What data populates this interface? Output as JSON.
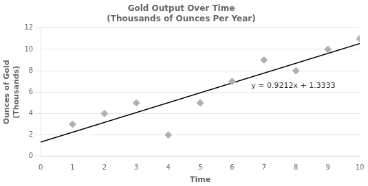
{
  "chart_data": {
    "type": "scatter",
    "title": "Gold Output Over Time\n(Thousands of Ounces Per Year)",
    "xlabel": "Time",
    "ylabel": "Ounces of Gold\n(Thousands)",
    "series": [
      {
        "type": "scatter",
        "x": [
          1,
          2,
          3,
          4,
          5,
          6,
          7,
          8,
          9,
          10
        ],
        "values": [
          3,
          4,
          5,
          2,
          5,
          7,
          9,
          8,
          10,
          11
        ],
        "color": "#b0b0b0",
        "marker": "diamond"
      },
      {
        "type": "line",
        "x": [
          0,
          10
        ],
        "values": [
          1.3333,
          10.5453
        ],
        "color": "#000000",
        "line_style": "solid"
      }
    ],
    "annotations": [
      {
        "text": "y = 0.9212x + 1.3333",
        "x": 6.6,
        "y": 6.6
      }
    ],
    "xlim": [
      0,
      10
    ],
    "ylim": [
      0,
      12
    ],
    "xticks": [
      0,
      1,
      2,
      3,
      4,
      5,
      6,
      7,
      8,
      9,
      10
    ],
    "yticks": [
      0,
      2,
      4,
      6,
      8,
      10,
      12
    ],
    "grid": "y"
  }
}
